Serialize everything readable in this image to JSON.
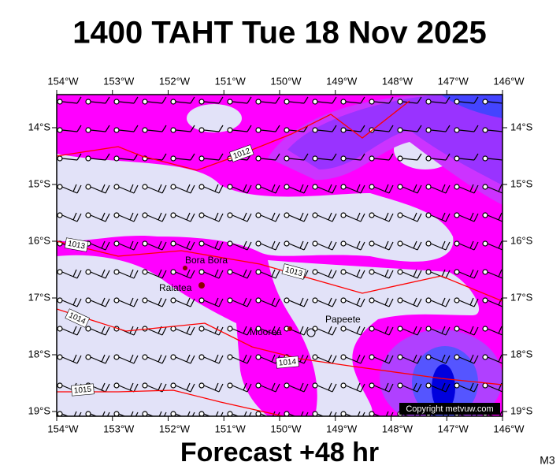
{
  "header": {
    "title": "1400 TAHT Tue 18 Nov 2025"
  },
  "map": {
    "longitude_labels": [
      "154°W",
      "153°W",
      "152°W",
      "151°W",
      "150°W",
      "149°W",
      "148°W",
      "147°W",
      "146°W"
    ],
    "latitude_labels": [
      "14°S",
      "15°S",
      "16°S",
      "17°S",
      "18°S",
      "19°S"
    ],
    "places": [
      "Bora Bora",
      "Raiatea",
      "Moorea",
      "Papeete"
    ],
    "isobar_labels": [
      "1012",
      "1013",
      "1013",
      "1014",
      "1014",
      "1015"
    ],
    "copyright": "Copyright metvuw.com"
  },
  "footer": {
    "caption": "Forecast +48 hr",
    "code": "M3"
  }
}
